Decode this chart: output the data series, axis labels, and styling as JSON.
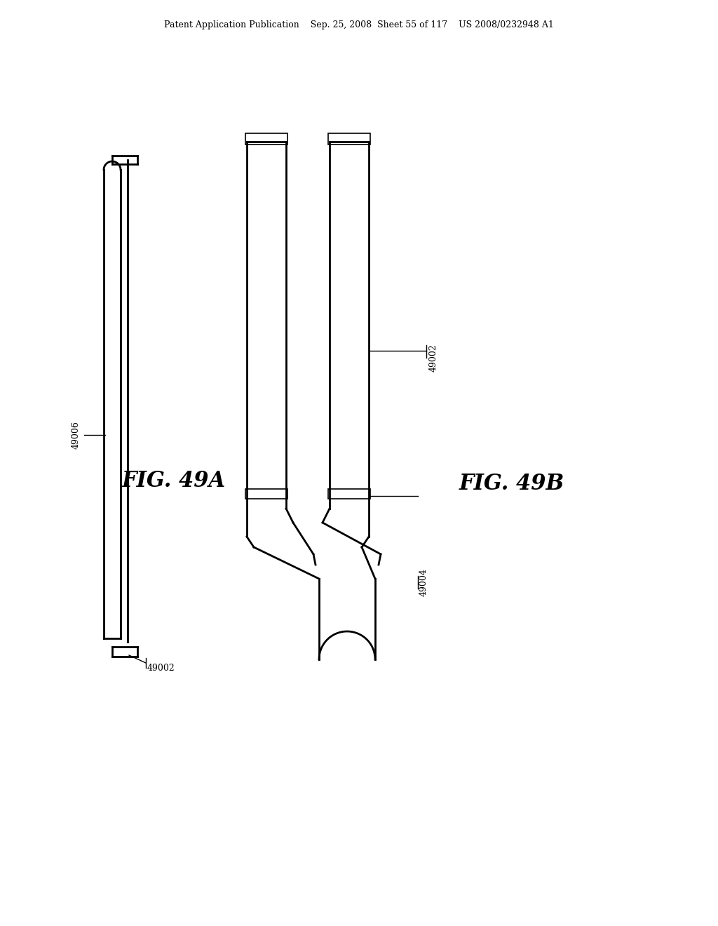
{
  "bg_color": "#ffffff",
  "line_color": "#000000",
  "header_text": "Patent Application Publication    Sep. 25, 2008  Sheet 55 of 117    US 2008/0232948 A1",
  "fig49a_label": "FIG. 49A",
  "fig49b_label": "FIG. 49B",
  "label_49002_a": "49002",
  "label_49002_b": "49002",
  "label_49004": "49004",
  "label_49006": "49006"
}
